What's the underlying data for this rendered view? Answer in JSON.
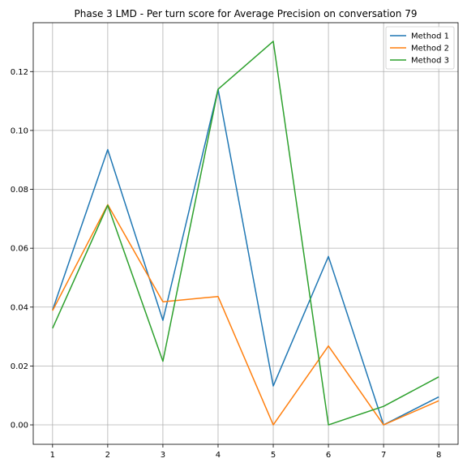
{
  "chart_data": {
    "type": "line",
    "title": "Phase 3 LMD - Per turn score for Average Precision on conversation 79",
    "xlabel": "",
    "ylabel": "",
    "x": [
      1,
      2,
      3,
      4,
      5,
      6,
      7,
      8
    ],
    "xticks": [
      "1",
      "2",
      "3",
      "4",
      "5",
      "6",
      "7",
      "8"
    ],
    "yticks": [
      "0.00",
      "0.02",
      "0.04",
      "0.06",
      "0.08",
      "0.10",
      "0.12"
    ],
    "xlim": [
      0.65,
      8.35
    ],
    "ylim": [
      -0.0066,
      0.1366
    ],
    "grid": true,
    "legend_position": "top-right",
    "series": [
      {
        "name": "Method 1",
        "color": "#1f77b4",
        "values": [
          0.039,
          0.0935,
          0.0355,
          0.114,
          0.0132,
          0.0572,
          0.0,
          0.0095
        ]
      },
      {
        "name": "Method 2",
        "color": "#ff7f0e",
        "values": [
          0.0388,
          0.0748,
          0.0418,
          0.0436,
          0.0,
          0.0268,
          0.0,
          0.0082
        ]
      },
      {
        "name": "Method 3",
        "color": "#2ca02c",
        "values": [
          0.0328,
          0.0746,
          0.0216,
          0.114,
          0.1303,
          0.0,
          0.0063,
          0.0163
        ]
      }
    ]
  }
}
